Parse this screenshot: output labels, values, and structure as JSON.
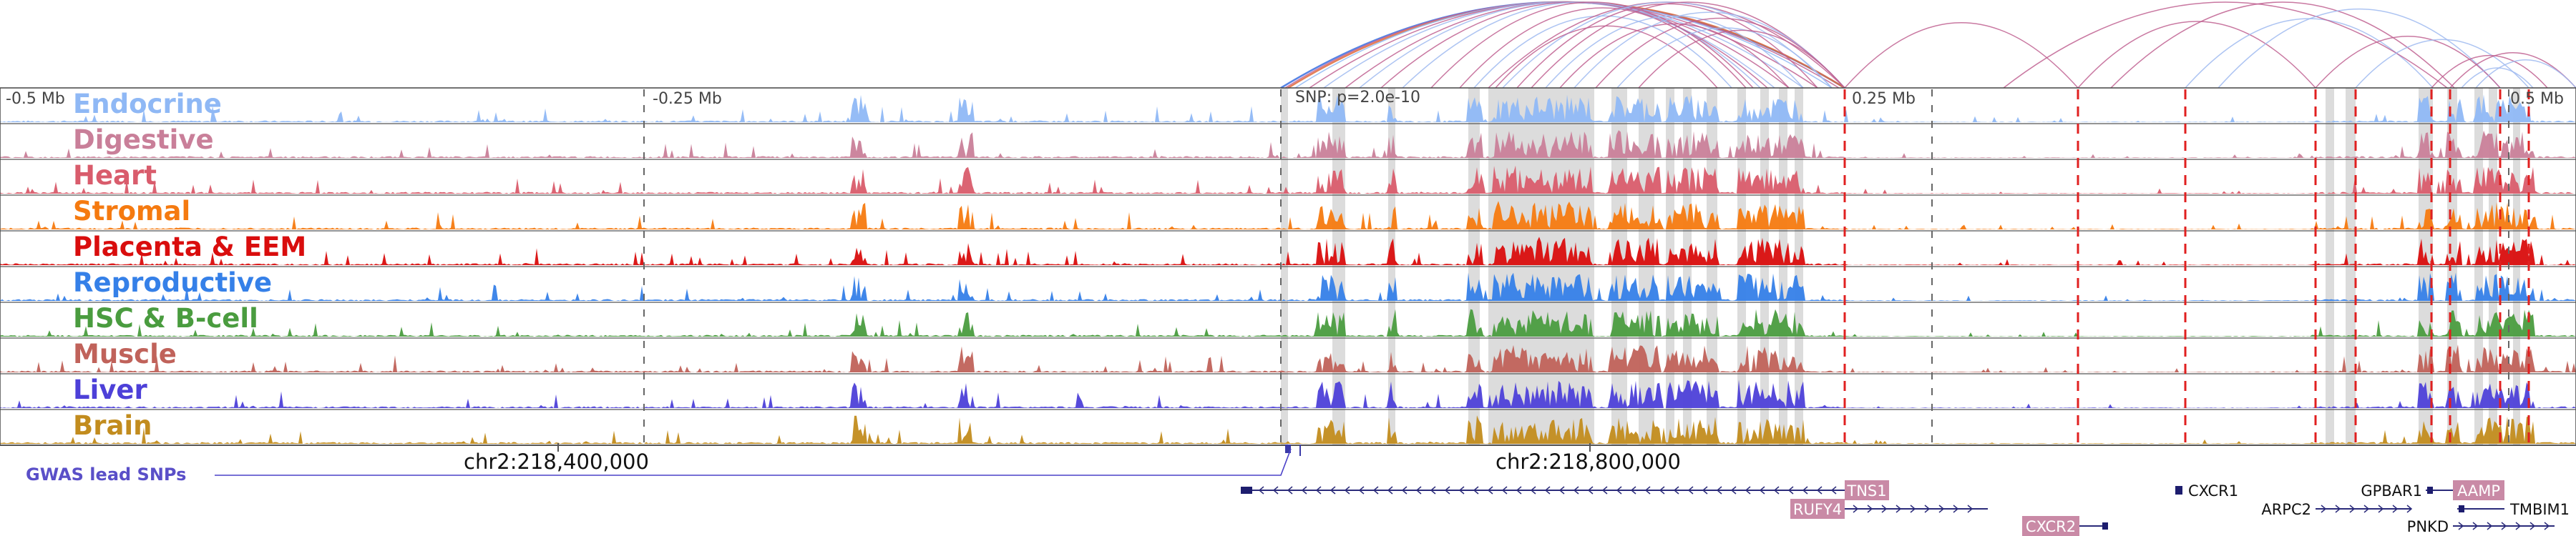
{
  "ruler": {
    "labels": [
      "-0.5 Mb",
      "-0.25 Mb",
      "SNP: p=2.0e-10",
      "0.25 Mb",
      "0.5 Mb"
    ]
  },
  "tracks": [
    {
      "name": "Endocrine",
      "color": "#8fb8f5"
    },
    {
      "name": "Digestive",
      "color": "#c97f99"
    },
    {
      "name": "Heart",
      "color": "#d95c6c"
    },
    {
      "name": "Stromal",
      "color": "#f57a10"
    },
    {
      "name": "Placenta & EEM",
      "color": "#d90d0d"
    },
    {
      "name": "Reproductive",
      "color": "#3580e8"
    },
    {
      "name": "HSC & B-cell",
      "color": "#4a9c3f"
    },
    {
      "name": "Muscle",
      "color": "#c0625a"
    },
    {
      "name": "Liver",
      "color": "#4d40d8"
    },
    {
      "name": "Brain",
      "color": "#c28c1e"
    }
  ],
  "gwas": {
    "label": "GWAS lead SNPs",
    "coord1": "chr2:218,400,000",
    "coord2": "chr2:218,800,000"
  },
  "genes": [
    "TNS1",
    "RUFY4",
    "CXCR2",
    "CXCR1",
    "ARPC2",
    "GPBAR1",
    "AAMP",
    "TMBIM1",
    "PNKD"
  ]
}
